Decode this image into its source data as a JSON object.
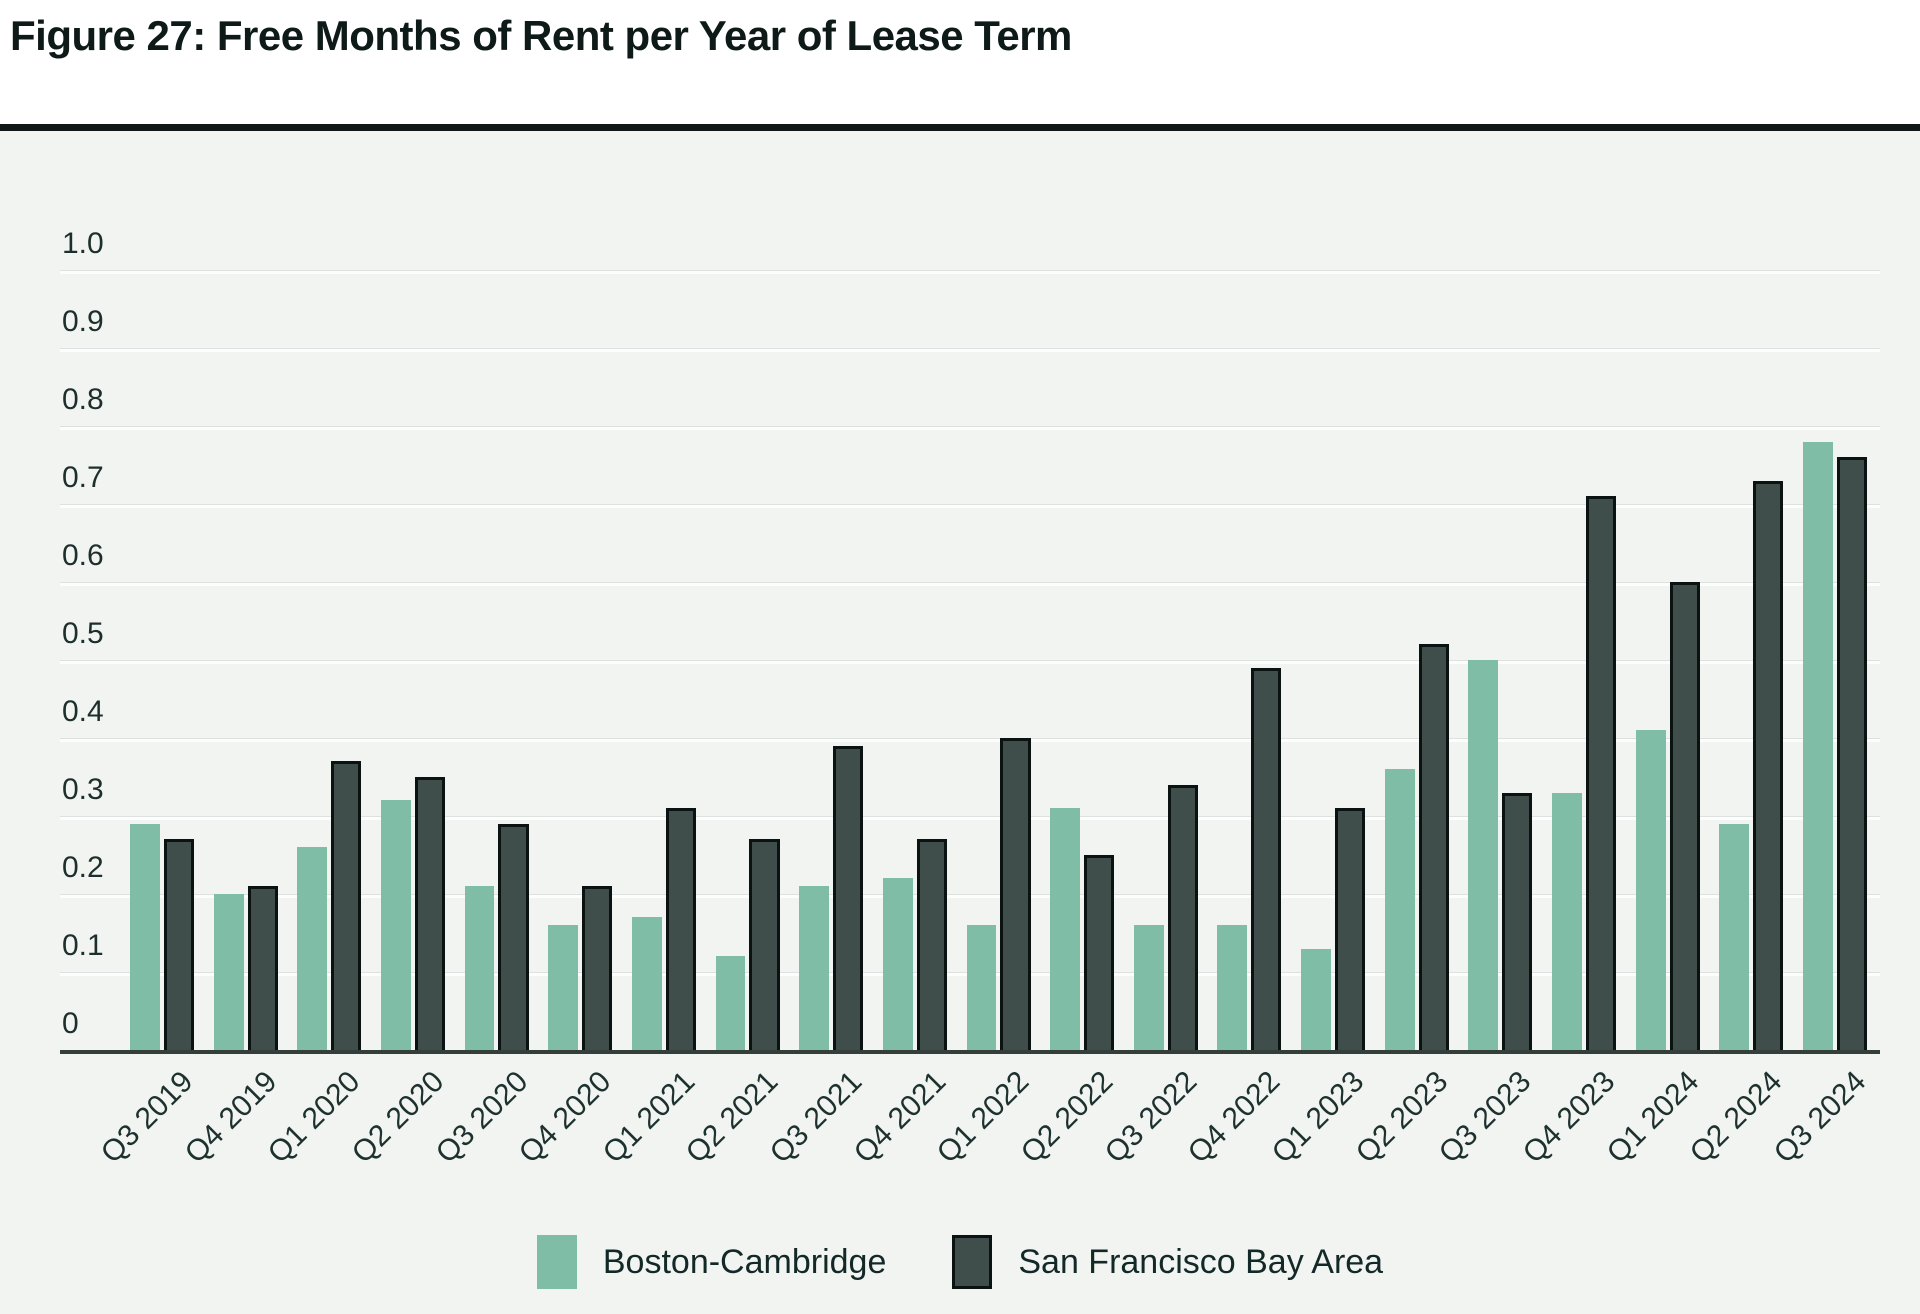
{
  "figure": {
    "title": "Figure 27: Free Months of Rent per Year of Lease Term"
  },
  "chart_data": {
    "type": "bar",
    "title": "Figure 27: Free Months of Rent per Year of Lease Term",
    "categories": [
      "Q3 2019",
      "Q4 2019",
      "Q1 2020",
      "Q2 2020",
      "Q3 2020",
      "Q4 2020",
      "Q1 2021",
      "Q2 2021",
      "Q3 2021",
      "Q4 2021",
      "Q1 2022",
      "Q2 2022",
      "Q3 2022",
      "Q4 2022",
      "Q1 2023",
      "Q2 2023",
      "Q3 2023",
      "Q4 2023",
      "Q1 2024",
      "Q2 2024",
      "Q3 2024"
    ],
    "series": [
      {
        "name": "Boston-Cambridge",
        "color": "#80bda6",
        "values": [
          0.29,
          0.2,
          0.26,
          0.32,
          0.21,
          0.16,
          0.17,
          0.12,
          0.21,
          0.22,
          0.16,
          0.31,
          0.16,
          0.16,
          0.13,
          0.36,
          0.5,
          0.33,
          0.41,
          0.29,
          0.78
        ]
      },
      {
        "name": "San Francisco Bay Area",
        "color": "#3f4e4b",
        "values": [
          0.27,
          0.21,
          0.37,
          0.35,
          0.29,
          0.21,
          0.31,
          0.27,
          0.39,
          0.27,
          0.4,
          0.25,
          0.34,
          0.49,
          0.31,
          0.52,
          0.33,
          0.71,
          0.6,
          0.73,
          0.76
        ]
      }
    ],
    "xlabel": "",
    "ylabel": "",
    "ylim": [
      0,
      1.0
    ],
    "yticks": [
      "1.0",
      "0.9",
      "0.8",
      "0.7",
      "0.6",
      "0.5",
      "0.4",
      "0.3",
      "0.2",
      "0.1",
      "0"
    ],
    "grid": "horizontal",
    "legend_position": "bottom-center",
    "colors": {
      "panel_background": "#f2f4f2",
      "page_background": "#ffffff",
      "divider": "#101716",
      "gridline": "#fcfdfc",
      "axis_line": "#343e3b",
      "tick_text": "#1d2f2d",
      "title_text": "#0d1a18"
    }
  }
}
